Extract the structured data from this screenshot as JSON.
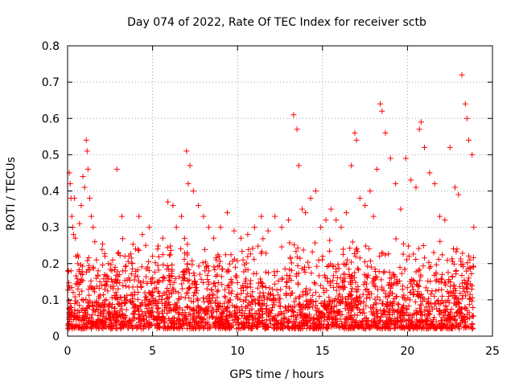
{
  "chart_data": {
    "type": "scatter",
    "title": "Day 074 of 2022, Rate Of TEC Index for receiver sctb",
    "xlabel": "GPS time / hours",
    "ylabel": "ROTI / TECUs",
    "xlim": [
      0,
      25
    ],
    "ylim": [
      0,
      0.8
    ],
    "xticks": [
      0,
      5,
      10,
      15,
      20,
      25
    ],
    "xtick_labels": [
      "0",
      "5",
      "10",
      "15",
      "20",
      "25"
    ],
    "yticks": [
      0,
      0.1,
      0.2,
      0.3,
      0.4,
      0.5,
      0.6,
      0.7,
      0.8
    ],
    "ytick_labels": [
      "0",
      "0.1",
      "0.2",
      "0.3",
      "0.4",
      "0.5",
      "0.6",
      "0.7",
      "0.8"
    ],
    "grid": true,
    "legend": false,
    "marker": "+",
    "marker_color": "#ff0000",
    "series": [
      {
        "x": [
          0.02,
          0.1,
          0.15,
          0.2,
          0.25,
          0.3,
          0.35,
          0.4,
          0.45,
          0.5,
          0.6,
          0.7,
          0.8,
          0.9,
          1.0,
          1.1,
          1.15,
          1.2,
          1.3,
          1.4,
          1.5,
          1.6,
          1.7,
          1.8,
          1.9,
          2.0,
          2.2,
          2.4,
          2.6,
          2.8,
          2.9,
          3.0,
          3.2,
          3.4,
          3.6,
          3.8,
          4.0,
          4.2,
          4.4,
          4.6,
          4.8,
          5.0,
          5.3,
          5.6,
          5.9,
          6.2,
          6.4,
          6.7,
          7.0,
          7.1,
          7.2,
          7.4,
          7.7,
          8.0,
          8.3,
          8.6,
          9.0,
          9.4,
          9.8,
          10.2,
          10.6,
          11.0,
          11.4,
          11.8,
          12.2,
          12.6,
          13.0,
          13.3,
          13.5,
          13.6,
          13.8,
          14.0,
          14.3,
          14.6,
          14.9,
          15.2,
          15.5,
          15.8,
          16.1,
          16.4,
          16.7,
          16.9,
          17.0,
          17.2,
          17.5,
          17.8,
          18.0,
          18.2,
          18.4,
          18.5,
          18.7,
          19.0,
          19.3,
          19.6,
          19.9,
          20.2,
          20.5,
          20.7,
          20.8,
          21.0,
          21.3,
          21.6,
          21.9,
          22.2,
          22.5,
          22.8,
          23.0,
          23.2,
          23.4,
          23.5,
          23.6,
          23.8,
          23.9
        ],
        "y": [
          0.03,
          0.45,
          0.42,
          0.38,
          0.33,
          0.3,
          0.28,
          0.38,
          0.27,
          0.22,
          0.2,
          0.31,
          0.36,
          0.44,
          0.41,
          0.54,
          0.51,
          0.46,
          0.38,
          0.33,
          0.3,
          0.26,
          0.21,
          0.18,
          0.15,
          0.14,
          0.22,
          0.2,
          0.18,
          0.19,
          0.46,
          0.23,
          0.33,
          0.18,
          0.16,
          0.2,
          0.24,
          0.33,
          0.28,
          0.25,
          0.3,
          0.22,
          0.24,
          0.27,
          0.37,
          0.36,
          0.3,
          0.33,
          0.51,
          0.42,
          0.47,
          0.4,
          0.36,
          0.33,
          0.3,
          0.27,
          0.3,
          0.34,
          0.29,
          0.27,
          0.28,
          0.3,
          0.33,
          0.29,
          0.33,
          0.3,
          0.32,
          0.61,
          0.57,
          0.47,
          0.35,
          0.34,
          0.38,
          0.4,
          0.3,
          0.32,
          0.35,
          0.32,
          0.3,
          0.34,
          0.47,
          0.56,
          0.54,
          0.38,
          0.36,
          0.4,
          0.33,
          0.46,
          0.64,
          0.62,
          0.56,
          0.49,
          0.42,
          0.35,
          0.49,
          0.43,
          0.41,
          0.57,
          0.59,
          0.52,
          0.45,
          0.42,
          0.33,
          0.32,
          0.52,
          0.41,
          0.39,
          0.72,
          0.64,
          0.6,
          0.54,
          0.5,
          0.3
        ]
      }
    ]
  }
}
